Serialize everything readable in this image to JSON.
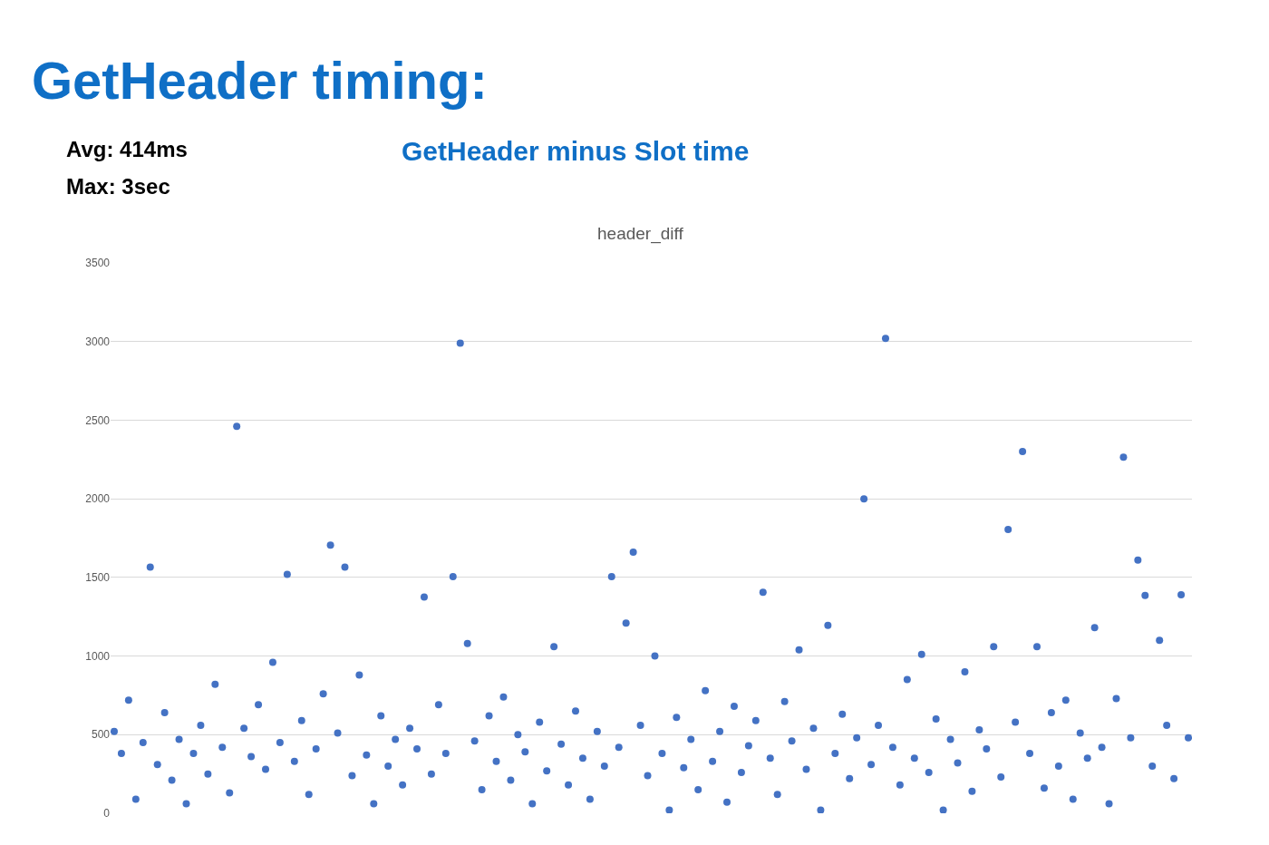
{
  "chart_data": {
    "type": "scatter",
    "title": "GetHeader timing:",
    "subtitle": "GetHeader minus Slot time",
    "annotations": [
      "Avg: 414ms",
      "Max: 3sec",
      "header_diff"
    ],
    "categories": [
      null,
      null,
      null,
      null,
      null,
      null,
      null,
      null,
      null,
      null,
      null,
      null,
      null,
      null,
      null,
      null,
      null,
      null,
      null,
      null,
      null,
      null,
      null,
      null,
      null,
      null,
      null,
      null,
      null,
      null,
      null,
      null,
      null,
      null,
      null,
      null,
      null,
      null,
      null,
      null,
      null,
      null,
      null,
      null,
      null,
      null,
      null,
      null,
      null,
      null,
      null,
      null,
      null,
      null,
      null,
      null,
      null,
      null,
      null,
      null,
      null,
      null,
      null,
      null,
      null,
      null,
      null,
      null,
      null,
      null,
      null,
      null,
      null,
      null,
      null,
      null,
      null,
      null,
      null,
      null,
      null,
      null,
      null,
      null,
      null,
      null,
      null,
      null,
      null,
      null,
      null,
      null,
      null,
      null,
      null,
      null,
      null,
      null,
      null,
      null,
      null,
      null,
      null,
      null,
      null,
      null,
      null,
      null,
      null,
      null,
      null,
      null,
      null,
      null,
      null,
      null,
      null,
      null,
      null,
      null,
      null,
      null,
      null,
      null,
      null,
      null,
      null,
      null,
      null,
      null,
      null,
      null,
      null,
      null,
      null,
      null,
      null,
      null,
      null,
      null,
      null,
      null,
      null,
      null,
      null,
      null,
      null,
      null,
      null,
      null
    ],
    "series": [
      {
        "color": "#4472c4",
        "values": [
          520,
          380,
          720,
          90,
          450,
          1565,
          310,
          640,
          210,
          470,
          60,
          380,
          560,
          250,
          820,
          420,
          130,
          2460,
          540,
          360,
          690,
          280,
          960,
          450,
          1520,
          330,
          590,
          120,
          410,
          760,
          1705,
          510,
          1565,
          240,
          880,
          370,
          60,
          620,
          300,
          470,
          180,
          540,
          410,
          1375,
          250,
          690,
          380,
          1505,
          2990,
          1080,
          460,
          150,
          620,
          330,
          740,
          210,
          500,
          390,
          60,
          580,
          270,
          1060,
          440,
          180,
          650,
          350,
          90,
          520,
          300,
          1505,
          420,
          1210,
          1660,
          560,
          240,
          1000,
          380,
          20,
          610,
          290,
          470,
          150,
          780,
          330,
          520,
          70,
          680,
          260,
          430,
          590,
          1405,
          350,
          120,
          710,
          460,
          1040,
          280,
          540,
          20,
          1195,
          380,
          630,
          220,
          480,
          2000,
          310,
          560,
          3020,
          420,
          180,
          850,
          350,
          1010,
          260,
          600,
          20,
          470,
          320,
          900,
          140,
          530,
          410,
          1060,
          230,
          1805,
          580,
          2300,
          380,
          1060,
          160,
          640,
          300,
          720,
          90,
          510,
          350,
          1180,
          420,
          60,
          730,
          2265,
          480,
          1610,
          1385,
          300,
          1100,
          560,
          220,
          1390,
          480
        ]
      }
    ],
    "ylim": [
      0,
      3500
    ],
    "yticks": [
      0,
      500,
      1000,
      1500,
      2000,
      2500,
      3000,
      3500
    ],
    "grid": "y",
    "marker": "circle",
    "tick_labels": "y"
  }
}
